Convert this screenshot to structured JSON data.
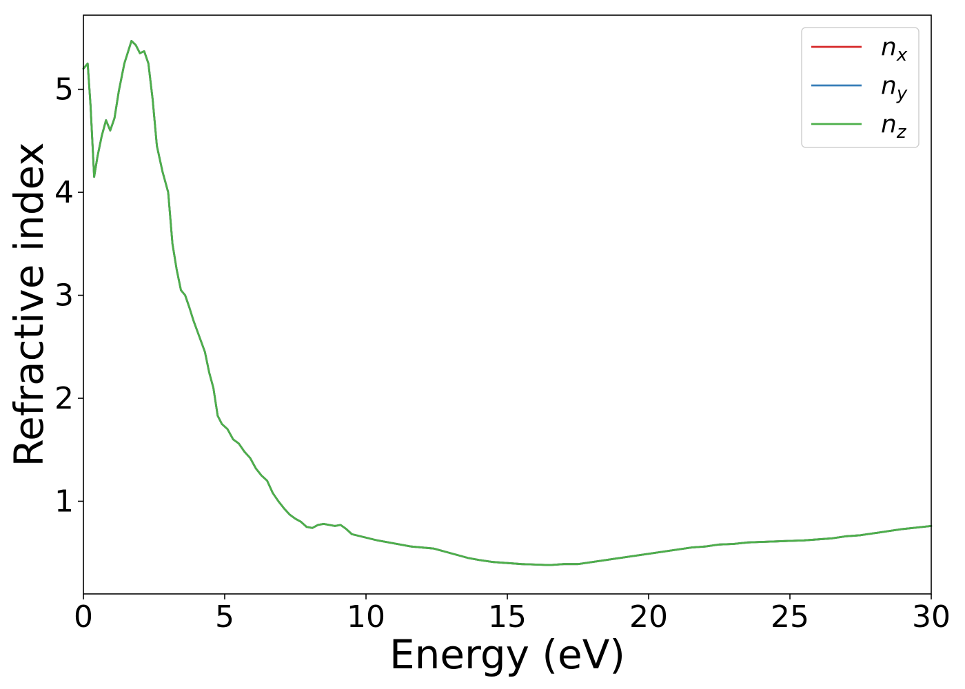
{
  "chart_data": {
    "type": "line",
    "title": "",
    "xlabel": "Energy (eV)",
    "ylabel": "Refractive index",
    "xlim": [
      0,
      30
    ],
    "ylim": [
      0.1,
      5.72
    ],
    "xticks": [
      0,
      5,
      10,
      15,
      20,
      25,
      30
    ],
    "xtick_labels": [
      "0",
      "5",
      "10",
      "15",
      "20",
      "25",
      "30"
    ],
    "yticks": [
      1,
      2,
      3,
      4,
      5
    ],
    "ytick_labels": [
      "1",
      "2",
      "3",
      "4",
      "5"
    ],
    "grid": false,
    "legend_position": "top-right",
    "x": [
      0,
      0.15,
      0.25,
      0.38,
      0.5,
      0.65,
      0.8,
      0.95,
      1.1,
      1.25,
      1.45,
      1.7,
      1.85,
      2.0,
      2.15,
      2.3,
      2.45,
      2.6,
      2.8,
      3.0,
      3.15,
      3.3,
      3.45,
      3.6,
      3.75,
      3.9,
      4.1,
      4.3,
      4.45,
      4.6,
      4.75,
      4.9,
      5.1,
      5.3,
      5.5,
      5.7,
      5.9,
      6.1,
      6.3,
      6.5,
      6.7,
      6.9,
      7.1,
      7.3,
      7.5,
      7.7,
      7.9,
      8.1,
      8.3,
      8.5,
      8.7,
      8.9,
      9.1,
      9.3,
      9.5,
      9.8,
      10.1,
      10.4,
      10.8,
      11.2,
      11.6,
      12.0,
      12.4,
      12.8,
      13.2,
      13.6,
      14.0,
      14.5,
      15.0,
      15.5,
      16.0,
      16.5,
      17.0,
      17.5,
      18.0,
      18.5,
      19.0,
      19.5,
      20.0,
      20.5,
      21.0,
      21.5,
      22.0,
      22.5,
      23.0,
      23.5,
      24.0,
      24.5,
      25.0,
      25.5,
      26.0,
      26.5,
      27.0,
      27.5,
      28.0,
      28.5,
      29.0,
      29.5,
      30.0
    ],
    "series": [
      {
        "name": "n_x",
        "color": "#d62728",
        "y": [
          5.2,
          5.25,
          4.85,
          4.15,
          4.35,
          4.55,
          4.7,
          4.6,
          4.72,
          4.98,
          5.25,
          5.47,
          5.43,
          5.35,
          5.37,
          5.25,
          4.9,
          4.45,
          4.2,
          4.0,
          3.5,
          3.25,
          3.05,
          3.0,
          2.88,
          2.75,
          2.6,
          2.45,
          2.25,
          2.1,
          1.83,
          1.75,
          1.7,
          1.6,
          1.56,
          1.48,
          1.42,
          1.32,
          1.25,
          1.2,
          1.08,
          1.0,
          0.93,
          0.87,
          0.83,
          0.8,
          0.75,
          0.74,
          0.77,
          0.78,
          0.77,
          0.76,
          0.77,
          0.73,
          0.68,
          0.66,
          0.64,
          0.62,
          0.6,
          0.58,
          0.56,
          0.55,
          0.54,
          0.51,
          0.48,
          0.45,
          0.43,
          0.41,
          0.4,
          0.39,
          0.385,
          0.38,
          0.39,
          0.39,
          0.41,
          0.43,
          0.45,
          0.47,
          0.49,
          0.51,
          0.53,
          0.55,
          0.56,
          0.58,
          0.585,
          0.6,
          0.605,
          0.61,
          0.615,
          0.62,
          0.63,
          0.64,
          0.66,
          0.67,
          0.69,
          0.71,
          0.73,
          0.745,
          0.76
        ]
      },
      {
        "name": "n_y",
        "color": "#377eb8",
        "y": [
          5.2,
          5.25,
          4.85,
          4.15,
          4.35,
          4.55,
          4.7,
          4.6,
          4.72,
          4.98,
          5.25,
          5.47,
          5.43,
          5.35,
          5.37,
          5.25,
          4.9,
          4.45,
          4.2,
          4.0,
          3.5,
          3.25,
          3.05,
          3.0,
          2.88,
          2.75,
          2.6,
          2.45,
          2.25,
          2.1,
          1.83,
          1.75,
          1.7,
          1.6,
          1.56,
          1.48,
          1.42,
          1.32,
          1.25,
          1.2,
          1.08,
          1.0,
          0.93,
          0.87,
          0.83,
          0.8,
          0.75,
          0.74,
          0.77,
          0.78,
          0.77,
          0.76,
          0.77,
          0.73,
          0.68,
          0.66,
          0.64,
          0.62,
          0.6,
          0.58,
          0.56,
          0.55,
          0.54,
          0.51,
          0.48,
          0.45,
          0.43,
          0.41,
          0.4,
          0.39,
          0.385,
          0.38,
          0.39,
          0.39,
          0.41,
          0.43,
          0.45,
          0.47,
          0.49,
          0.51,
          0.53,
          0.55,
          0.56,
          0.58,
          0.585,
          0.6,
          0.605,
          0.61,
          0.615,
          0.62,
          0.63,
          0.64,
          0.66,
          0.67,
          0.69,
          0.71,
          0.73,
          0.745,
          0.76
        ]
      },
      {
        "name": "n_z",
        "color": "#4daf4a",
        "y": [
          5.2,
          5.25,
          4.85,
          4.15,
          4.35,
          4.55,
          4.7,
          4.6,
          4.72,
          4.98,
          5.25,
          5.47,
          5.43,
          5.35,
          5.37,
          5.25,
          4.9,
          4.45,
          4.2,
          4.0,
          3.5,
          3.25,
          3.05,
          3.0,
          2.88,
          2.75,
          2.6,
          2.45,
          2.25,
          2.1,
          1.83,
          1.75,
          1.7,
          1.6,
          1.56,
          1.48,
          1.42,
          1.32,
          1.25,
          1.2,
          1.08,
          1.0,
          0.93,
          0.87,
          0.83,
          0.8,
          0.75,
          0.74,
          0.77,
          0.78,
          0.77,
          0.76,
          0.77,
          0.73,
          0.68,
          0.66,
          0.64,
          0.62,
          0.6,
          0.58,
          0.56,
          0.55,
          0.54,
          0.51,
          0.48,
          0.45,
          0.43,
          0.41,
          0.4,
          0.39,
          0.385,
          0.38,
          0.39,
          0.39,
          0.41,
          0.43,
          0.45,
          0.47,
          0.49,
          0.51,
          0.53,
          0.55,
          0.56,
          0.58,
          0.585,
          0.6,
          0.605,
          0.61,
          0.615,
          0.62,
          0.63,
          0.64,
          0.66,
          0.67,
          0.69,
          0.71,
          0.73,
          0.745,
          0.76
        ]
      }
    ],
    "legend": [
      {
        "base": "n",
        "sub": "x",
        "color": "#d62728"
      },
      {
        "base": "n",
        "sub": "y",
        "color": "#377eb8"
      },
      {
        "base": "n",
        "sub": "z",
        "color": "#4daf4a"
      }
    ]
  }
}
